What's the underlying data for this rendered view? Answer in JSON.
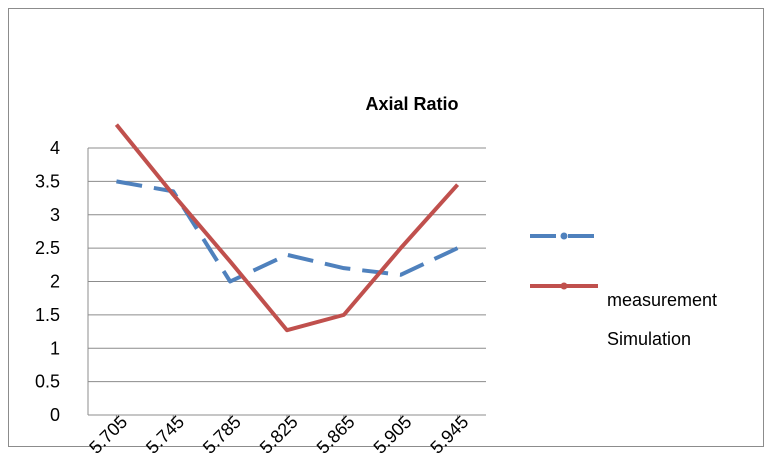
{
  "chart_data": {
    "type": "line",
    "title": "Axial Ratio",
    "xlabel": "",
    "ylabel": "",
    "categories": [
      "5.705",
      "5.745",
      "5.785",
      "5.825",
      "5.865",
      "5.905",
      "5.945"
    ],
    "ylim": [
      0,
      4
    ],
    "yticks": [
      "0",
      "0.5",
      "1",
      "1.5",
      "2",
      "2.5",
      "3",
      "3.5",
      "4"
    ],
    "grid": true,
    "legend_position": "right",
    "series": [
      {
        "legend_label": "",
        "color": "#4f81bd",
        "style": "dashed",
        "values": [
          3.5,
          3.35,
          2.0,
          2.4,
          2.2,
          2.1,
          2.5
        ]
      },
      {
        "legend_label": "measurement",
        "color": "#c0504d",
        "style": "solid",
        "values": [
          4.35,
          3.3,
          2.3,
          1.27,
          1.5,
          2.5,
          3.45
        ]
      }
    ],
    "extra_legend_text": "Simulation"
  }
}
